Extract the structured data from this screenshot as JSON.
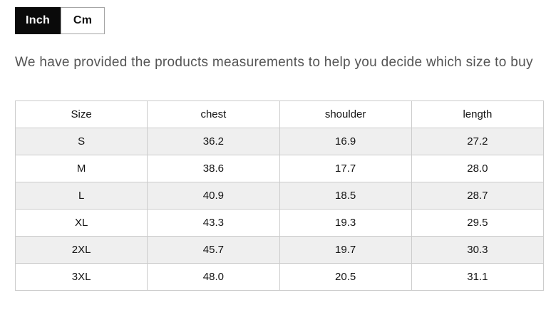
{
  "toggle": {
    "inch_label": "Inch",
    "cm_label": "Cm",
    "active_unit": "Inch"
  },
  "description": "We have provided the products measurements to help you decide which size to buy",
  "size_table": {
    "headers": [
      "Size",
      "chest",
      "shoulder",
      "length"
    ],
    "rows": [
      [
        "S",
        "36.2",
        "16.9",
        "27.2"
      ],
      [
        "M",
        "38.6",
        "17.7",
        "28.0"
      ],
      [
        "L",
        "40.9",
        "18.5",
        "28.7"
      ],
      [
        "XL",
        "43.3",
        "19.3",
        "29.5"
      ],
      [
        "2XL",
        "45.7",
        "19.7",
        "30.3"
      ],
      [
        "3XL",
        "48.0",
        "20.5",
        "31.1"
      ]
    ]
  },
  "colors": {
    "active_toggle_bg": "#0a0a0a",
    "active_toggle_text": "#ffffff",
    "inactive_toggle_border": "#a6a6a6",
    "description_text": "#545454",
    "table_border": "#cccccc",
    "alt_row_bg": "#efefef"
  }
}
